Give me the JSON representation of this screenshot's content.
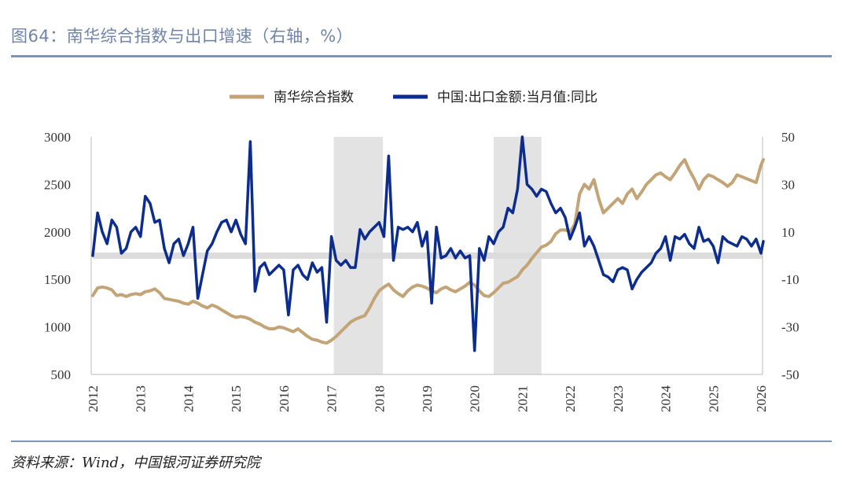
{
  "title": "图64：南华综合指数与出口增速（右轴，%）",
  "source": "资料来源：Wind，中国银河证券研究院",
  "colors": {
    "nanhua": "#c2a477",
    "export": "#0d2d8e",
    "shade": "#e3e3e3",
    "accent": "#7f93b5"
  },
  "chart_data": {
    "type": "line",
    "legend": [
      "南华综合指数",
      "中国:出口金额:当月值:同比"
    ],
    "x_ticks": [
      "2012",
      "2013",
      "2014",
      "2015",
      "2016",
      "2017",
      "2018",
      "2019",
      "2020",
      "2021",
      "2022",
      "2023",
      "2024",
      "2025",
      "2026"
    ],
    "xlim": [
      2012,
      2026
    ],
    "y_left": {
      "ticks": [
        "3000",
        "2500",
        "2000",
        "1500",
        "1000",
        "500"
      ],
      "range": [
        500,
        3000
      ]
    },
    "y_right": {
      "ticks": [
        "50",
        "30",
        "10",
        "-10",
        "-30",
        "-50"
      ],
      "range": [
        -50,
        50
      ],
      "label": "右轴，%"
    },
    "shaded_periods": [
      [
        2017.05,
        2018.08
      ],
      [
        2020.4,
        2021.4
      ]
    ],
    "series": [
      {
        "name": "南华综合指数",
        "axis": "left",
        "points": [
          [
            2012.0,
            1330
          ],
          [
            2012.1,
            1410
          ],
          [
            2012.2,
            1420
          ],
          [
            2012.3,
            1410
          ],
          [
            2012.4,
            1390
          ],
          [
            2012.5,
            1330
          ],
          [
            2012.6,
            1340
          ],
          [
            2012.7,
            1320
          ],
          [
            2012.8,
            1340
          ],
          [
            2012.9,
            1350
          ],
          [
            2013.0,
            1340
          ],
          [
            2013.1,
            1370
          ],
          [
            2013.2,
            1380
          ],
          [
            2013.3,
            1400
          ],
          [
            2013.4,
            1360
          ],
          [
            2013.5,
            1300
          ],
          [
            2013.6,
            1290
          ],
          [
            2013.7,
            1280
          ],
          [
            2013.8,
            1270
          ],
          [
            2013.9,
            1250
          ],
          [
            2014.0,
            1240
          ],
          [
            2014.1,
            1270
          ],
          [
            2014.2,
            1250
          ],
          [
            2014.3,
            1220
          ],
          [
            2014.4,
            1200
          ],
          [
            2014.5,
            1230
          ],
          [
            2014.6,
            1210
          ],
          [
            2014.7,
            1180
          ],
          [
            2014.8,
            1150
          ],
          [
            2014.9,
            1120
          ],
          [
            2015.0,
            1100
          ],
          [
            2015.1,
            1110
          ],
          [
            2015.2,
            1100
          ],
          [
            2015.3,
            1080
          ],
          [
            2015.4,
            1050
          ],
          [
            2015.5,
            1030
          ],
          [
            2015.6,
            1000
          ],
          [
            2015.7,
            980
          ],
          [
            2015.8,
            980
          ],
          [
            2015.9,
            1000
          ],
          [
            2016.0,
            990
          ],
          [
            2016.1,
            970
          ],
          [
            2016.2,
            950
          ],
          [
            2016.3,
            980
          ],
          [
            2016.4,
            940
          ],
          [
            2016.5,
            900
          ],
          [
            2016.6,
            870
          ],
          [
            2016.7,
            860
          ],
          [
            2016.8,
            840
          ],
          [
            2016.9,
            830
          ],
          [
            2017.0,
            860
          ],
          [
            2017.1,
            900
          ],
          [
            2017.2,
            950
          ],
          [
            2017.3,
            1000
          ],
          [
            2017.4,
            1050
          ],
          [
            2017.5,
            1080
          ],
          [
            2017.6,
            1100
          ],
          [
            2017.7,
            1120
          ],
          [
            2017.8,
            1200
          ],
          [
            2017.9,
            1300
          ],
          [
            2018.0,
            1380
          ],
          [
            2018.1,
            1420
          ],
          [
            2018.2,
            1450
          ],
          [
            2018.3,
            1390
          ],
          [
            2018.4,
            1350
          ],
          [
            2018.5,
            1320
          ],
          [
            2018.6,
            1380
          ],
          [
            2018.7,
            1420
          ],
          [
            2018.8,
            1440
          ],
          [
            2018.9,
            1430
          ],
          [
            2019.0,
            1410
          ],
          [
            2019.1,
            1380
          ],
          [
            2019.2,
            1360
          ],
          [
            2019.3,
            1400
          ],
          [
            2019.4,
            1420
          ],
          [
            2019.5,
            1390
          ],
          [
            2019.6,
            1370
          ],
          [
            2019.7,
            1400
          ],
          [
            2019.8,
            1430
          ],
          [
            2019.9,
            1470
          ],
          [
            2020.0,
            1440
          ],
          [
            2020.1,
            1380
          ],
          [
            2020.2,
            1330
          ],
          [
            2020.3,
            1320
          ],
          [
            2020.4,
            1360
          ],
          [
            2020.5,
            1410
          ],
          [
            2020.6,
            1460
          ],
          [
            2020.7,
            1470
          ],
          [
            2020.8,
            1500
          ],
          [
            2020.9,
            1530
          ],
          [
            2021.0,
            1600
          ],
          [
            2021.1,
            1650
          ],
          [
            2021.2,
            1720
          ],
          [
            2021.3,
            1780
          ],
          [
            2021.4,
            1840
          ],
          [
            2021.5,
            1860
          ],
          [
            2021.6,
            1900
          ],
          [
            2021.7,
            1980
          ],
          [
            2021.8,
            2020
          ],
          [
            2021.9,
            2020
          ],
          [
            2022.0,
            2000
          ],
          [
            2022.1,
            2080
          ],
          [
            2022.2,
            2400
          ],
          [
            2022.3,
            2500
          ],
          [
            2022.4,
            2450
          ],
          [
            2022.5,
            2550
          ],
          [
            2022.6,
            2350
          ],
          [
            2022.7,
            2200
          ],
          [
            2022.8,
            2250
          ],
          [
            2022.9,
            2300
          ],
          [
            2023.0,
            2350
          ],
          [
            2023.1,
            2300
          ],
          [
            2023.2,
            2400
          ],
          [
            2023.3,
            2450
          ],
          [
            2023.4,
            2350
          ],
          [
            2023.5,
            2420
          ],
          [
            2023.6,
            2500
          ],
          [
            2023.7,
            2550
          ],
          [
            2023.8,
            2600
          ],
          [
            2023.9,
            2620
          ],
          [
            2024.0,
            2580
          ],
          [
            2024.1,
            2550
          ],
          [
            2024.2,
            2620
          ],
          [
            2024.3,
            2700
          ],
          [
            2024.4,
            2760
          ],
          [
            2024.5,
            2650
          ],
          [
            2024.6,
            2560
          ],
          [
            2024.7,
            2450
          ],
          [
            2024.8,
            2550
          ],
          [
            2024.9,
            2600
          ],
          [
            2025.0,
            2580
          ],
          [
            2025.1,
            2550
          ],
          [
            2025.2,
            2520
          ],
          [
            2025.3,
            2480
          ],
          [
            2025.4,
            2520
          ],
          [
            2025.5,
            2600
          ],
          [
            2025.6,
            2580
          ],
          [
            2025.7,
            2560
          ],
          [
            2025.8,
            2540
          ],
          [
            2025.9,
            2520
          ],
          [
            2026.0,
            2700
          ],
          [
            2026.05,
            2760
          ]
        ]
      },
      {
        "name": "中国:出口金额:当月值:同比",
        "axis": "right",
        "points": [
          [
            2012.0,
            0
          ],
          [
            2012.1,
            18
          ],
          [
            2012.2,
            10
          ],
          [
            2012.3,
            5
          ],
          [
            2012.4,
            15
          ],
          [
            2012.5,
            12
          ],
          [
            2012.6,
            1
          ],
          [
            2012.7,
            3
          ],
          [
            2012.8,
            10
          ],
          [
            2012.9,
            12
          ],
          [
            2013.0,
            8
          ],
          [
            2013.1,
            25
          ],
          [
            2013.2,
            22
          ],
          [
            2013.3,
            14
          ],
          [
            2013.4,
            15
          ],
          [
            2013.5,
            3
          ],
          [
            2013.6,
            -3
          ],
          [
            2013.7,
            5
          ],
          [
            2013.8,
            7
          ],
          [
            2013.9,
            0
          ],
          [
            2014.0,
            5
          ],
          [
            2014.1,
            12
          ],
          [
            2014.2,
            -18
          ],
          [
            2014.3,
            -8
          ],
          [
            2014.4,
            2
          ],
          [
            2014.5,
            5
          ],
          [
            2014.6,
            10
          ],
          [
            2014.7,
            14
          ],
          [
            2014.8,
            15
          ],
          [
            2014.9,
            10
          ],
          [
            2015.0,
            15
          ],
          [
            2015.1,
            9
          ],
          [
            2015.2,
            5
          ],
          [
            2015.3,
            48
          ],
          [
            2015.4,
            -15
          ],
          [
            2015.5,
            -5
          ],
          [
            2015.6,
            -3
          ],
          [
            2015.7,
            -8
          ],
          [
            2015.8,
            -6
          ],
          [
            2015.9,
            -4
          ],
          [
            2016.0,
            -6
          ],
          [
            2016.1,
            -25
          ],
          [
            2016.2,
            -6
          ],
          [
            2016.3,
            -4
          ],
          [
            2016.4,
            -8
          ],
          [
            2016.5,
            -10
          ],
          [
            2016.6,
            -3
          ],
          [
            2016.7,
            -7
          ],
          [
            2016.8,
            -5
          ],
          [
            2016.9,
            -28
          ],
          [
            2017.0,
            8
          ],
          [
            2017.1,
            -2
          ],
          [
            2017.2,
            -4
          ],
          [
            2017.3,
            -2
          ],
          [
            2017.4,
            -5
          ],
          [
            2017.5,
            -5
          ],
          [
            2017.6,
            11
          ],
          [
            2017.7,
            7
          ],
          [
            2017.8,
            10
          ],
          [
            2017.9,
            12
          ],
          [
            2018.0,
            14
          ],
          [
            2018.1,
            8
          ],
          [
            2018.2,
            42
          ],
          [
            2018.3,
            -2
          ],
          [
            2018.4,
            12
          ],
          [
            2018.5,
            11
          ],
          [
            2018.6,
            12
          ],
          [
            2018.7,
            10
          ],
          [
            2018.8,
            14
          ],
          [
            2018.9,
            4
          ],
          [
            2019.0,
            10
          ],
          [
            2019.1,
            -20
          ],
          [
            2019.2,
            12
          ],
          [
            2019.3,
            -1
          ],
          [
            2019.4,
            0
          ],
          [
            2019.5,
            3
          ],
          [
            2019.6,
            -1
          ],
          [
            2019.7,
            2
          ],
          [
            2019.8,
            -1
          ],
          [
            2019.9,
            0
          ],
          [
            2020.0,
            -40
          ],
          [
            2020.1,
            3
          ],
          [
            2020.2,
            -2
          ],
          [
            2020.3,
            8
          ],
          [
            2020.4,
            5
          ],
          [
            2020.5,
            10
          ],
          [
            2020.6,
            12
          ],
          [
            2020.7,
            20
          ],
          [
            2020.8,
            18
          ],
          [
            2020.9,
            28
          ],
          [
            2021.0,
            55
          ],
          [
            2021.1,
            30
          ],
          [
            2021.2,
            28
          ],
          [
            2021.3,
            25
          ],
          [
            2021.4,
            28
          ],
          [
            2021.5,
            27
          ],
          [
            2021.6,
            22
          ],
          [
            2021.7,
            18
          ],
          [
            2021.8,
            20
          ],
          [
            2021.9,
            16
          ],
          [
            2022.0,
            7
          ],
          [
            2022.1,
            12
          ],
          [
            2022.2,
            18
          ],
          [
            2022.3,
            4
          ],
          [
            2022.4,
            8
          ],
          [
            2022.5,
            4
          ],
          [
            2022.6,
            -2
          ],
          [
            2022.7,
            -8
          ],
          [
            2022.8,
            -9
          ],
          [
            2022.9,
            -11
          ],
          [
            2023.0,
            -6
          ],
          [
            2023.1,
            -5
          ],
          [
            2023.2,
            -6
          ],
          [
            2023.3,
            -14
          ],
          [
            2023.4,
            -10
          ],
          [
            2023.5,
            -7
          ],
          [
            2023.6,
            -5
          ],
          [
            2023.7,
            -3
          ],
          [
            2023.8,
            1
          ],
          [
            2023.9,
            3
          ],
          [
            2024.0,
            8
          ],
          [
            2024.1,
            -2
          ],
          [
            2024.2,
            8
          ],
          [
            2024.3,
            7
          ],
          [
            2024.4,
            9
          ],
          [
            2024.5,
            5
          ],
          [
            2024.6,
            3
          ],
          [
            2024.7,
            12
          ],
          [
            2024.8,
            6
          ],
          [
            2024.9,
            7
          ],
          [
            2025.0,
            4
          ],
          [
            2025.1,
            -3
          ],
          [
            2025.2,
            8
          ],
          [
            2025.3,
            6
          ],
          [
            2025.4,
            5
          ],
          [
            2025.5,
            4
          ],
          [
            2025.6,
            8
          ],
          [
            2025.7,
            7
          ],
          [
            2025.8,
            4
          ],
          [
            2025.9,
            7
          ],
          [
            2026.0,
            1
          ],
          [
            2026.05,
            6
          ]
        ]
      }
    ]
  }
}
